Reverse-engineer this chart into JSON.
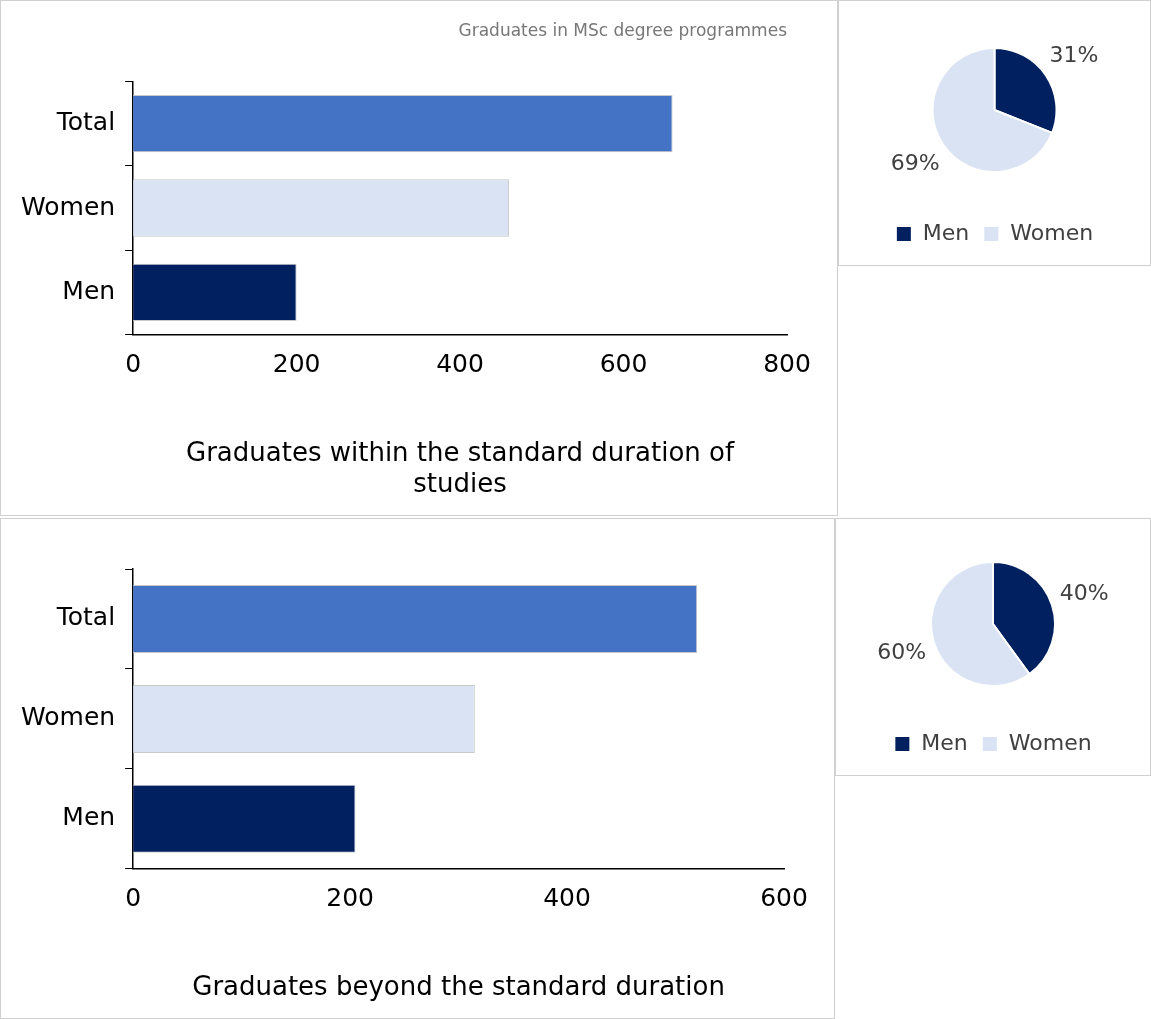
{
  "chart_data": [
    {
      "type": "bar",
      "orientation": "horizontal",
      "title": "Graduates in MSc degree programmes",
      "categories": [
        "Total",
        "Women",
        "Men"
      ],
      "values": [
        660,
        460,
        200
      ],
      "colors": [
        "#4472c4",
        "#dae3f3",
        "#002060"
      ],
      "xlim": [
        0,
        800
      ],
      "xticks": [
        0,
        200,
        400,
        600,
        800
      ],
      "xlabel": "Graduates within the standard duration of studies"
    },
    {
      "type": "pie",
      "categories": [
        "Men",
        "Women"
      ],
      "values": [
        31,
        69
      ],
      "value_labels": [
        "31%",
        "69%"
      ],
      "colors": [
        "#002060",
        "#dae3f3"
      ],
      "legend": "bottom"
    },
    {
      "type": "bar",
      "orientation": "horizontal",
      "categories": [
        "Total",
        "Women",
        "Men"
      ],
      "values": [
        520,
        315,
        205
      ],
      "colors": [
        "#4472c4",
        "#dae3f3",
        "#002060"
      ],
      "xlim": [
        0,
        600
      ],
      "xticks": [
        0,
        200,
        400,
        600
      ],
      "xlabel": "Graduates beyond the standard duration"
    },
    {
      "type": "pie",
      "categories": [
        "Men",
        "Women"
      ],
      "values": [
        40,
        60
      ],
      "value_labels": [
        "40%",
        "60%"
      ],
      "colors": [
        "#002060",
        "#dae3f3"
      ],
      "legend": "bottom"
    }
  ]
}
